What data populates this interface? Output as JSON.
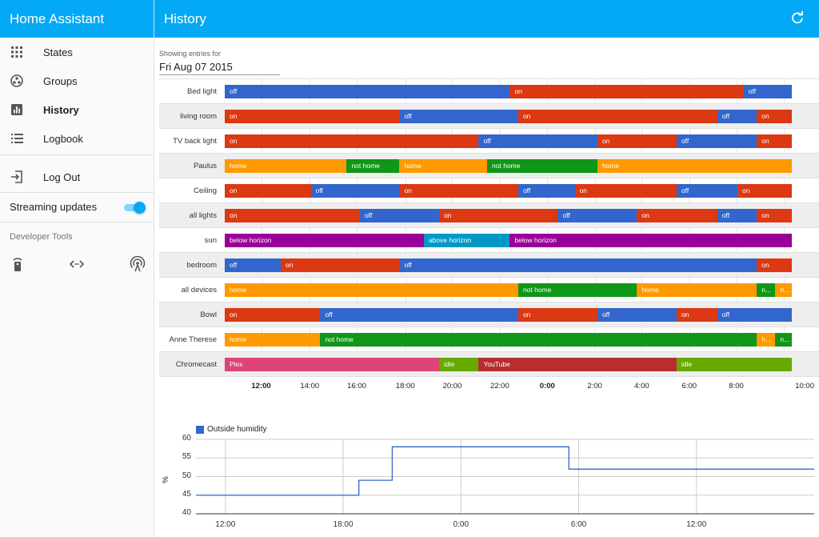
{
  "sidebar": {
    "app_title": "Home Assistant",
    "nav": [
      {
        "label": "States",
        "icon": "apps-grid-icon"
      },
      {
        "label": "Groups",
        "icon": "group-circle-icon"
      },
      {
        "label": "History",
        "icon": "chart-icon"
      },
      {
        "label": "Logbook",
        "icon": "list-icon"
      }
    ],
    "logout_label": "Log Out",
    "streaming_label": "Streaming updates",
    "streaming_on": true,
    "dev_tools_title": "Developer Tools",
    "dev_tool_icons": [
      "remote-icon",
      "code-arrows-icon",
      "broadcast-icon"
    ]
  },
  "header": {
    "title": "History",
    "refresh_icon": "refresh-icon"
  },
  "date_picker": {
    "label": "Showing entries for",
    "value": "Fri Aug 07 2015"
  },
  "colors": {
    "accent": "#03a9f4",
    "on": "#dc3912",
    "off": "#3366cc",
    "home": "#ff9900",
    "not_home": "#109618",
    "below_horizon": "#990099",
    "above_horizon": "#0099c6",
    "plex": "#dd4477",
    "idle": "#66aa00",
    "youtube": "#b82e2e"
  },
  "timeline": {
    "entities": [
      {
        "name": "Bed light",
        "segments": [
          [
            "off",
            0,
            0.54
          ],
          [
            "on",
            0.54,
            0.983
          ],
          [
            "off",
            0.983,
            1.075
          ]
        ]
      },
      {
        "name": "living room",
        "segments": [
          [
            "on",
            0,
            0.331
          ],
          [
            "off",
            0.331,
            0.556
          ],
          [
            "on",
            0.556,
            0.933
          ],
          [
            "off",
            0.933,
            1.008
          ],
          [
            "on",
            1.008,
            1.075
          ]
        ]
      },
      {
        "name": "TV back light",
        "segments": [
          [
            "on",
            0,
            0.481
          ],
          [
            "off",
            0.481,
            0.706
          ],
          [
            "on",
            0.706,
            0.856
          ],
          [
            "off",
            0.856,
            1.008
          ],
          [
            "on",
            1.008,
            1.075
          ]
        ]
      },
      {
        "name": "Paulus",
        "segments": [
          [
            "home",
            0,
            0.231
          ],
          [
            "not home",
            0.231,
            0.331
          ],
          [
            "home",
            0.331,
            0.497
          ],
          [
            "not home",
            0.497,
            0.706
          ],
          [
            "home",
            0.706,
            1.075
          ]
        ]
      },
      {
        "name": "Ceiling",
        "segments": [
          [
            "on",
            0,
            0.163
          ],
          [
            "off",
            0.163,
            0.331
          ],
          [
            "on",
            0.331,
            0.556
          ],
          [
            "off",
            0.556,
            0.663
          ],
          [
            "on",
            0.663,
            0.856
          ],
          [
            "off",
            0.856,
            0.971
          ],
          [
            "on",
            0.971,
            1.075
          ]
        ]
      },
      {
        "name": "all lights",
        "segments": [
          [
            "on",
            0,
            0.256
          ],
          [
            "off",
            0.256,
            0.406
          ],
          [
            "on",
            0.406,
            0.631
          ],
          [
            "off",
            0.631,
            0.781
          ],
          [
            "on",
            0.781,
            0.933
          ],
          [
            "off",
            0.933,
            1.008
          ],
          [
            "on",
            1.008,
            1.075
          ]
        ]
      },
      {
        "name": "sun",
        "segments": [
          [
            "below horizon",
            0,
            0.377
          ],
          [
            "above horizon",
            0.377,
            0.54
          ],
          [
            "below horizon",
            0.54,
            1.075
          ]
        ]
      },
      {
        "name": "bedroom",
        "segments": [
          [
            "off",
            0,
            0.106
          ],
          [
            "on",
            0.106,
            0.331
          ],
          [
            "off",
            0.331,
            1.008
          ],
          [
            "on",
            1.008,
            1.075
          ]
        ]
      },
      {
        "name": "all devices",
        "segments": [
          [
            "home",
            0,
            0.556
          ],
          [
            "not home",
            0.556,
            0.781
          ],
          [
            "home",
            0.781,
            1.008
          ],
          [
            "n...",
            1.008,
            1.043
          ],
          [
            "h...",
            1.043,
            1.075
          ]
        ]
      },
      {
        "name": "Bowl",
        "segments": [
          [
            "on",
            0,
            0.181
          ],
          [
            "off",
            0.181,
            0.556
          ],
          [
            "on",
            0.556,
            0.706
          ],
          [
            "off",
            0.706,
            0.856
          ],
          [
            "on",
            0.856,
            0.933
          ],
          [
            "off",
            0.933,
            1.075
          ]
        ]
      },
      {
        "name": "Anne Therese",
        "segments": [
          [
            "home",
            0,
            0.181
          ],
          [
            "not home",
            0.181,
            1.008
          ],
          [
            "h...",
            1.008,
            1.043
          ],
          [
            "n...",
            1.043,
            1.075
          ]
        ]
      },
      {
        "name": "Chromecast",
        "segments": [
          [
            "Plex",
            0,
            0.406
          ],
          [
            "idle",
            0.406,
            0.481
          ],
          [
            "YouTube",
            0.481,
            0.856
          ],
          [
            "idle",
            0.856,
            1.075
          ]
        ]
      }
    ],
    "ticks": [
      {
        "label": "12:00",
        "bold": true,
        "t": 0.069
      },
      {
        "label": "14:00",
        "bold": false,
        "t": 0.161
      },
      {
        "label": "16:00",
        "bold": false,
        "t": 0.25
      },
      {
        "label": "18:00",
        "bold": false,
        "t": 0.342
      },
      {
        "label": "20:00",
        "bold": false,
        "t": 0.431
      },
      {
        "label": "22:00",
        "bold": false,
        "t": 0.521
      },
      {
        "label": "0:00",
        "bold": true,
        "t": 0.611
      },
      {
        "label": "2:00",
        "bold": false,
        "t": 0.701
      },
      {
        "label": "4:00",
        "bold": false,
        "t": 0.79
      },
      {
        "label": "6:00",
        "bold": false,
        "t": 0.88
      },
      {
        "label": "8:00",
        "bold": false,
        "t": 0.969
      },
      {
        "label": "10:00",
        "bold": false,
        "t": 1.059
      }
    ]
  },
  "chart_data": {
    "type": "line",
    "series": [
      {
        "name": "Outside humidity",
        "step": true,
        "x": [
          10.5,
          18.8,
          18.8,
          20.5,
          20.5,
          29.5,
          29.5,
          42
        ],
        "y": [
          45,
          45,
          49,
          49,
          58,
          58,
          52,
          52
        ]
      }
    ],
    "ylabel": "%",
    "ylim": [
      40,
      60
    ],
    "yticks": [
      "60",
      "55",
      "50",
      "45",
      "40"
    ],
    "xticks": [
      {
        "label": "12:00",
        "x": 12
      },
      {
        "label": "18:00",
        "x": 18
      },
      {
        "label": "0:00",
        "x": 24
      },
      {
        "label": "6:00",
        "x": 30
      },
      {
        "label": "12:00",
        "x": 36
      }
    ],
    "xlim": [
      10.5,
      42
    ],
    "grid": true,
    "legend": "top-left"
  }
}
